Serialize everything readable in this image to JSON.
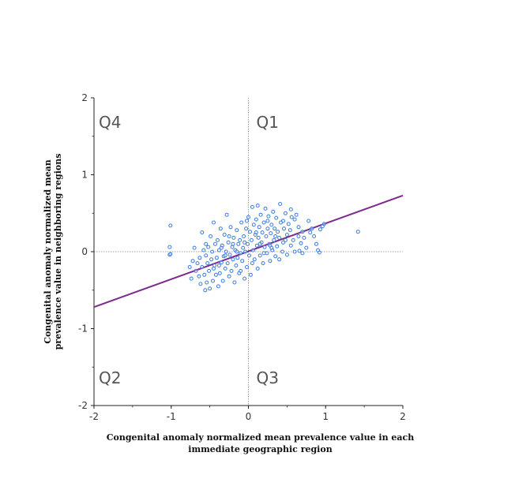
{
  "chart_data": {
    "type": "scatter",
    "title": "",
    "xlabel_lines": [
      "Congenital anomaly normalized mean prevalence value in each",
      "immediate geographic region"
    ],
    "ylabel_lines": [
      "Congenital anomaly normalized mean",
      "prevalence value in neighboring regions"
    ],
    "xlim": [
      -2,
      2
    ],
    "ylim": [
      -2,
      2
    ],
    "xticks": [
      "-2",
      "-1",
      "0",
      "1",
      "2"
    ],
    "yticks": [
      "2",
      "1",
      "0",
      "-1",
      "-2"
    ],
    "quadrant_labels": {
      "top_left": "Q4",
      "top_right": "Q1",
      "bottom_left": "Q2",
      "bottom_right": "Q3"
    },
    "reference_lines": {
      "x": 0,
      "y": 0,
      "style": "dotted"
    },
    "trend_line": {
      "x1": -2,
      "y1": -0.72,
      "x2": 2,
      "y2": 0.73,
      "color": "#7b2a8f"
    },
    "point_color": "#3b7be0",
    "points": [
      [
        -1.01,
        0.34
      ],
      [
        -1.02,
        0.06
      ],
      [
        -1.02,
        -0.04
      ],
      [
        -1.01,
        -0.03
      ],
      [
        1.42,
        0.26
      ],
      [
        0.98,
        0.36
      ],
      [
        0.96,
        0.33
      ],
      [
        0.93,
        0.29
      ],
      [
        0.92,
        -0.01
      ],
      [
        0.9,
        0.02
      ],
      [
        0.88,
        0.1
      ],
      [
        0.85,
        0.2
      ],
      [
        0.82,
        0.3
      ],
      [
        0.8,
        0.25
      ],
      [
        0.78,
        0.4
      ],
      [
        0.75,
        0.05
      ],
      [
        0.72,
        0.18
      ],
      [
        0.7,
        0.26
      ],
      [
        0.68,
        0.11
      ],
      [
        0.66,
        0.01
      ],
      [
        0.65,
        0.32
      ],
      [
        0.62,
        0.48
      ],
      [
        0.6,
        0.42
      ],
      [
        0.58,
        0.15
      ],
      [
        0.56,
        0.45
      ],
      [
        0.55,
        0.08
      ],
      [
        0.54,
        0.28
      ],
      [
        0.52,
        0.36
      ],
      [
        0.5,
        -0.04
      ],
      [
        0.5,
        0.22
      ],
      [
        0.48,
        0.5
      ],
      [
        0.46,
        0.3
      ],
      [
        0.45,
        0.12
      ],
      [
        0.44,
        0.0
      ],
      [
        0.42,
        0.38
      ],
      [
        0.41,
        0.62
      ],
      [
        0.4,
        0.18
      ],
      [
        0.38,
        0.26
      ],
      [
        0.37,
        0.07
      ],
      [
        0.36,
        0.44
      ],
      [
        0.35,
        -0.06
      ],
      [
        0.34,
        0.3
      ],
      [
        0.33,
        0.15
      ],
      [
        0.32,
        0.52
      ],
      [
        0.31,
        0.02
      ],
      [
        0.3,
        0.35
      ],
      [
        0.29,
        0.24
      ],
      [
        0.28,
        -0.12
      ],
      [
        0.27,
        0.1
      ],
      [
        0.26,
        0.46
      ],
      [
        0.25,
        0.3
      ],
      [
        0.24,
        -0.02
      ],
      [
        0.23,
        0.2
      ],
      [
        0.22,
        0.56
      ],
      [
        0.21,
        0.06
      ],
      [
        0.2,
        0.38
      ],
      [
        0.19,
        -0.15
      ],
      [
        0.18,
        0.25
      ],
      [
        0.17,
        0.12
      ],
      [
        0.16,
        0.48
      ],
      [
        0.15,
        -0.05
      ],
      [
        0.14,
        0.32
      ],
      [
        0.13,
        0.18
      ],
      [
        0.12,
        -0.22
      ],
      [
        0.11,
        0.08
      ],
      [
        0.1,
        0.42
      ],
      [
        0.09,
        0.22
      ],
      [
        0.08,
        -0.1
      ],
      [
        0.07,
        0.35
      ],
      [
        0.06,
        0.02
      ],
      [
        0.05,
        0.58
      ],
      [
        0.04,
        0.15
      ],
      [
        0.03,
        -0.3
      ],
      [
        0.02,
        0.26
      ],
      [
        0.01,
        -0.05
      ],
      [
        0.0,
        0.45
      ],
      [
        -0.01,
        0.1
      ],
      [
        -0.02,
        -0.2
      ],
      [
        -0.03,
        0.3
      ],
      [
        -0.04,
        0.0
      ],
      [
        -0.05,
        -0.35
      ],
      [
        -0.06,
        0.2
      ],
      [
        -0.07,
        0.05
      ],
      [
        -0.08,
        -0.12
      ],
      [
        -0.09,
        0.38
      ],
      [
        -0.1,
        -0.02
      ],
      [
        -0.11,
        0.15
      ],
      [
        -0.12,
        -0.28
      ],
      [
        -0.13,
        0.1
      ],
      [
        -0.14,
        -0.08
      ],
      [
        -0.15,
        0.28
      ],
      [
        -0.16,
        -0.18
      ],
      [
        -0.17,
        0.02
      ],
      [
        -0.18,
        -0.4
      ],
      [
        -0.19,
        0.18
      ],
      [
        -0.2,
        -0.1
      ],
      [
        -0.21,
        0.06
      ],
      [
        -0.22,
        -0.25
      ],
      [
        -0.23,
        0.32
      ],
      [
        -0.24,
        -0.04
      ],
      [
        -0.25,
        -0.32
      ],
      [
        -0.26,
        0.12
      ],
      [
        -0.27,
        -0.15
      ],
      [
        -0.28,
        0.48
      ],
      [
        -0.29,
        0.0
      ],
      [
        -0.3,
        -0.22
      ],
      [
        -0.31,
        0.22
      ],
      [
        -0.32,
        -0.06
      ],
      [
        -0.33,
        -0.38
      ],
      [
        -0.34,
        0.08
      ],
      [
        -0.35,
        -0.14
      ],
      [
        -0.36,
        0.3
      ],
      [
        -0.37,
        -0.28
      ],
      [
        -0.38,
        0.02
      ],
      [
        -0.39,
        -0.45
      ],
      [
        -0.4,
        0.15
      ],
      [
        -0.41,
        -0.08
      ],
      [
        -0.42,
        -0.3
      ],
      [
        -0.43,
        0.1
      ],
      [
        -0.44,
        -0.18
      ],
      [
        -0.45,
        0.38
      ],
      [
        -0.46,
        -0.38
      ],
      [
        -0.47,
        0.0
      ],
      [
        -0.48,
        -0.1
      ],
      [
        -0.49,
        0.2
      ],
      [
        -0.5,
        -0.48
      ],
      [
        -0.51,
        -0.25
      ],
      [
        -0.52,
        0.06
      ],
      [
        -0.53,
        -0.15
      ],
      [
        -0.54,
        -0.4
      ],
      [
        -0.55,
        -0.05
      ],
      [
        -0.56,
        -0.5
      ],
      [
        -0.57,
        -0.3
      ],
      [
        -0.58,
        0.02
      ],
      [
        -0.6,
        -0.2
      ],
      [
        -0.62,
        -0.42
      ],
      [
        -0.63,
        -0.08
      ],
      [
        -0.64,
        -0.32
      ],
      [
        -0.66,
        -0.15
      ],
      [
        -0.68,
        -0.25
      ],
      [
        -0.7,
        0.05
      ],
      [
        -0.72,
        -0.12
      ],
      [
        -0.74,
        -0.35
      ],
      [
        -0.76,
        -0.2
      ],
      [
        -0.6,
        0.25
      ],
      [
        -0.35,
        0.05
      ],
      [
        -0.2,
        0.1
      ],
      [
        0.15,
        0.1
      ],
      [
        0.3,
        0.05
      ],
      [
        0.4,
        -0.1
      ],
      [
        -0.1,
        -0.25
      ],
      [
        0.05,
        -0.15
      ],
      [
        0.2,
        -0.02
      ],
      [
        -0.25,
        0.2
      ],
      [
        0.6,
        0.0
      ],
      [
        0.7,
        -0.02
      ],
      [
        0.55,
        0.55
      ],
      [
        0.25,
        0.4
      ],
      [
        -0.45,
        -0.22
      ],
      [
        -0.15,
        0.0
      ],
      [
        0.1,
        0.25
      ],
      [
        -0.05,
        0.12
      ],
      [
        0.35,
        0.2
      ],
      [
        -0.3,
        -0.05
      ],
      [
        0.48,
        0.15
      ],
      [
        0.65,
        0.2
      ],
      [
        -0.55,
        0.1
      ],
      [
        0.12,
        0.6
      ],
      [
        -0.02,
        0.4
      ],
      [
        0.28,
        0.08
      ],
      [
        -0.38,
        -0.18
      ],
      [
        0.45,
        0.4
      ]
    ]
  }
}
